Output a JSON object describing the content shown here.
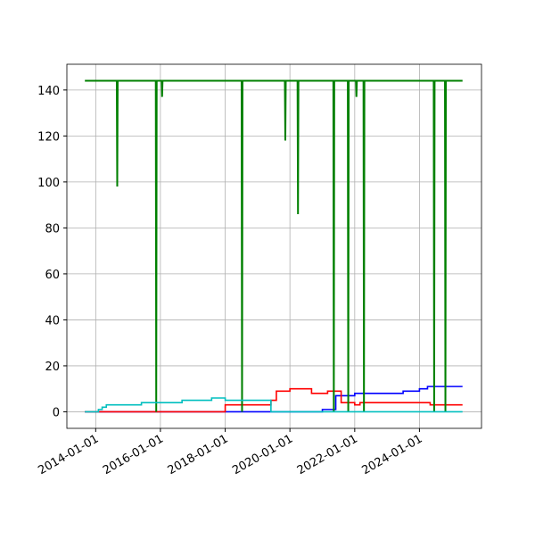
{
  "chart_data": {
    "type": "line",
    "xlim": [
      "2013-02-10",
      "2025-12-01"
    ],
    "xticks": [
      "2014-01-01",
      "2016-01-01",
      "2018-01-01",
      "2020-01-01",
      "2022-01-01",
      "2024-01-01"
    ],
    "ylim": [
      -7.2,
      151.2
    ],
    "yticks": [
      0,
      20,
      40,
      60,
      80,
      100,
      120,
      140
    ],
    "grid": true,
    "series": [
      {
        "color": "#0000ff",
        "x": [
          "2013-09-01",
          "2021-01-01",
          "2021-01-01",
          "2021-06-01",
          "2021-06-01",
          "2022-01-01",
          "2022-01-01",
          "2023-07-01",
          "2023-07-01",
          "2024-01-01",
          "2024-01-01",
          "2024-04-01",
          "2024-04-01",
          "2025-05-01"
        ],
        "values": [
          0,
          0,
          1,
          1,
          7,
          7,
          8,
          8,
          9,
          9,
          10,
          10,
          11,
          11
        ]
      },
      {
        "color": "#ff0000",
        "x": [
          "2013-09-01",
          "2018-01-01",
          "2018-01-01",
          "2019-06-01",
          "2019-06-01",
          "2019-08-01",
          "2019-08-01",
          "2020-01-01",
          "2020-01-01",
          "2020-09-01",
          "2020-09-01",
          "2021-03-01",
          "2021-03-01",
          "2021-08-01",
          "2021-08-01",
          "2022-01-01",
          "2022-01-01",
          "2022-03-01",
          "2022-03-01",
          "2024-05-01",
          "2024-05-01",
          "2025-05-01"
        ],
        "values": [
          0,
          0,
          3,
          3,
          5,
          5,
          9,
          9,
          10,
          10,
          8,
          8,
          9,
          9,
          4,
          4,
          3,
          3,
          4,
          4,
          3,
          3
        ]
      },
      {
        "color": "#008000",
        "x": [
          "2013-09-01",
          "2014-08-27",
          "2014-09-01",
          "2014-09-06",
          "2015-11-10",
          "2015-11-15",
          "2015-11-20",
          "2016-01-15",
          "2016-01-20",
          "2016-01-25",
          "2018-07-05",
          "2018-07-10",
          "2018-07-15",
          "2019-11-05",
          "2019-11-10",
          "2019-11-15",
          "2020-03-27",
          "2020-04-01",
          "2020-04-06",
          "2021-05-05",
          "2021-05-10",
          "2021-05-15",
          "2021-10-15",
          "2021-10-20",
          "2021-10-25",
          "2022-01-15",
          "2022-01-20",
          "2022-01-25",
          "2022-04-10",
          "2022-04-15",
          "2022-04-20",
          "2024-06-10",
          "2024-06-15",
          "2024-06-20",
          "2024-10-15",
          "2024-10-20",
          "2024-10-25",
          "2025-05-01"
        ],
        "values": [
          144,
          144,
          98,
          144,
          144,
          0,
          144,
          144,
          137,
          144,
          144,
          0,
          144,
          144,
          118,
          144,
          144,
          86,
          144,
          144,
          0,
          144,
          144,
          0,
          144,
          144,
          137,
          144,
          144,
          0,
          144,
          144,
          0,
          144,
          144,
          0,
          144,
          144
        ]
      },
      {
        "color": "#00bfbf",
        "x": [
          "2013-09-01",
          "2014-02-01",
          "2014-02-01",
          "2014-03-15",
          "2014-03-15",
          "2014-05-01",
          "2014-05-01",
          "2015-06-01",
          "2015-06-01",
          "2016-09-01",
          "2016-09-01",
          "2017-08-01",
          "2017-08-01",
          "2018-01-01",
          "2018-01-01",
          "2019-06-01",
          "2019-06-01",
          "2025-05-01"
        ],
        "values": [
          0,
          0,
          1,
          1,
          2,
          2,
          3,
          3,
          4,
          4,
          5,
          5,
          6,
          6,
          5,
          5,
          0,
          0
        ]
      }
    ]
  }
}
